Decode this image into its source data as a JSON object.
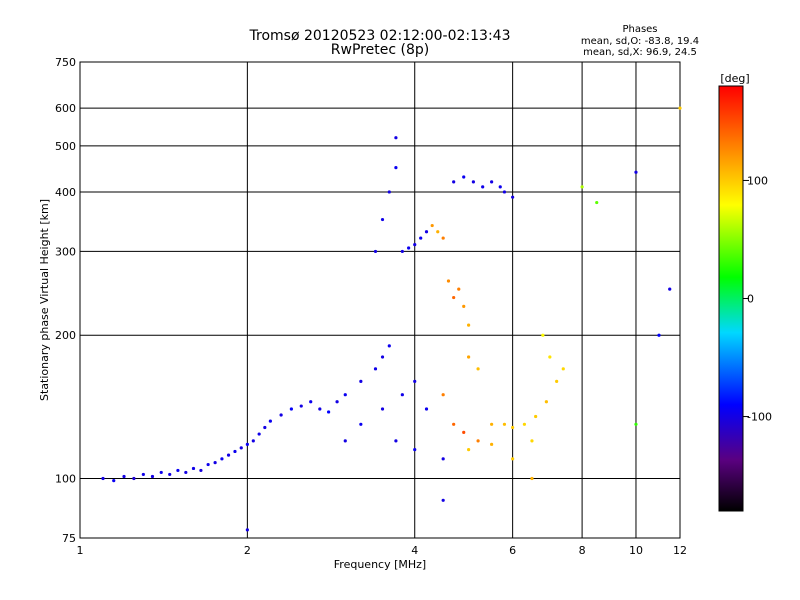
{
  "chart_data": {
    "type": "scatter",
    "title": "Tromsø 20120523 02:12:00-02:13:43",
    "subtitle": "RwPretec (8p)",
    "xlabel": "Frequency [MHz]",
    "ylabel": "Stationary phase Virtual Height [km]",
    "x_scale": "log",
    "y_scale": "log",
    "xlim": [
      1,
      12
    ],
    "ylim": [
      75,
      750
    ],
    "x_ticks": [
      1,
      2,
      4,
      6,
      8,
      10,
      12
    ],
    "y_ticks": [
      75,
      100,
      200,
      300,
      400,
      500,
      600,
      750
    ],
    "grid": true,
    "legend": {
      "heading": "Phases",
      "lines": [
        "mean, sd,O: -83.8, 19.4",
        "mean, sd,X:  96.9, 24.5"
      ]
    },
    "colorbar": {
      "label": "[deg]",
      "range": [
        -180,
        180
      ],
      "ticks": [
        100,
        0,
        -100
      ]
    },
    "points": [
      [
        1.1,
        100,
        -100
      ],
      [
        1.15,
        99,
        -95
      ],
      [
        1.2,
        101,
        -100
      ],
      [
        1.25,
        100,
        -105
      ],
      [
        1.3,
        102,
        -98
      ],
      [
        1.35,
        101,
        -100
      ],
      [
        1.4,
        103,
        -96
      ],
      [
        1.45,
        102,
        -100
      ],
      [
        1.5,
        104,
        -94
      ],
      [
        1.55,
        103,
        -100
      ],
      [
        1.6,
        105,
        -98
      ],
      [
        1.65,
        104,
        -102
      ],
      [
        1.7,
        107,
        -97
      ],
      [
        1.75,
        108,
        -100
      ],
      [
        1.8,
        110,
        -95
      ],
      [
        1.85,
        112,
        -100
      ],
      [
        1.9,
        114,
        -96
      ],
      [
        1.95,
        116,
        -100
      ],
      [
        2.0,
        118,
        -94
      ],
      [
        2.05,
        120,
        -100
      ],
      [
        2.1,
        124,
        -98
      ],
      [
        2.15,
        128,
        -100
      ],
      [
        2.2,
        132,
        -95
      ],
      [
        2.3,
        136,
        -100
      ],
      [
        2.4,
        140,
        -92
      ],
      [
        2.5,
        142,
        -100
      ],
      [
        2.6,
        145,
        -96
      ],
      [
        2.7,
        140,
        -100
      ],
      [
        2.8,
        138,
        -90
      ],
      [
        2.9,
        145,
        -100
      ],
      [
        3.0,
        150,
        -95
      ],
      [
        3.2,
        160,
        -100
      ],
      [
        3.4,
        170,
        -98
      ],
      [
        3.5,
        180,
        -100
      ],
      [
        3.6,
        190,
        -96
      ],
      [
        3.4,
        300,
        -100
      ],
      [
        3.5,
        350,
        -98
      ],
      [
        3.6,
        400,
        -100
      ],
      [
        3.7,
        450,
        -95
      ],
      [
        3.7,
        520,
        -100
      ],
      [
        3.8,
        300,
        -100
      ],
      [
        3.9,
        305,
        -96
      ],
      [
        4.0,
        310,
        -100
      ],
      [
        4.1,
        320,
        -95
      ],
      [
        4.2,
        330,
        -100
      ],
      [
        4.3,
        340,
        120
      ],
      [
        4.4,
        330,
        110
      ],
      [
        4.5,
        320,
        130
      ],
      [
        4.6,
        260,
        125
      ],
      [
        4.7,
        240,
        140
      ],
      [
        4.8,
        250,
        130
      ],
      [
        4.9,
        230,
        120
      ],
      [
        5.0,
        210,
        110
      ],
      [
        5.0,
        180,
        115
      ],
      [
        5.2,
        170,
        105
      ],
      [
        4.7,
        420,
        -100
      ],
      [
        4.9,
        430,
        -95
      ],
      [
        5.1,
        420,
        -100
      ],
      [
        5.3,
        410,
        -98
      ],
      [
        5.5,
        420,
        -100
      ],
      [
        5.7,
        410,
        -96
      ],
      [
        5.8,
        400,
        -100
      ],
      [
        6.0,
        390,
        -100
      ],
      [
        4.5,
        150,
        130
      ],
      [
        4.7,
        130,
        140
      ],
      [
        4.9,
        125,
        150
      ],
      [
        5.2,
        120,
        130
      ],
      [
        5.5,
        130,
        110
      ],
      [
        5.8,
        130,
        105
      ],
      [
        6.0,
        128,
        100
      ],
      [
        6.3,
        130,
        95
      ],
      [
        6.6,
        135,
        100
      ],
      [
        6.9,
        145,
        105
      ],
      [
        7.2,
        160,
        100
      ],
      [
        7.4,
        170,
        95
      ],
      [
        6.8,
        200,
        80
      ],
      [
        7.0,
        180,
        90
      ],
      [
        3.0,
        120,
        -100
      ],
      [
        3.2,
        130,
        -95
      ],
      [
        3.5,
        140,
        -100
      ],
      [
        3.8,
        150,
        -98
      ],
      [
        4.0,
        160,
        -100
      ],
      [
        4.2,
        140,
        -96
      ],
      [
        3.7,
        120,
        -100
      ],
      [
        4.0,
        115,
        -95
      ],
      [
        4.5,
        110,
        -100
      ],
      [
        5.0,
        115,
        100
      ],
      [
        5.5,
        118,
        110
      ],
      [
        6.0,
        110,
        100
      ],
      [
        6.5,
        120,
        95
      ],
      [
        8.0,
        410,
        60
      ],
      [
        8.5,
        380,
        40
      ],
      [
        10.0,
        440,
        -100
      ],
      [
        10.0,
        130,
        30
      ],
      [
        11.0,
        200,
        -90
      ],
      [
        11.5,
        250,
        -100
      ],
      [
        12.0,
        600,
        100
      ],
      [
        2.0,
        78,
        -100
      ],
      [
        4.5,
        90,
        -100
      ],
      [
        6.5,
        100,
        110
      ]
    ]
  }
}
